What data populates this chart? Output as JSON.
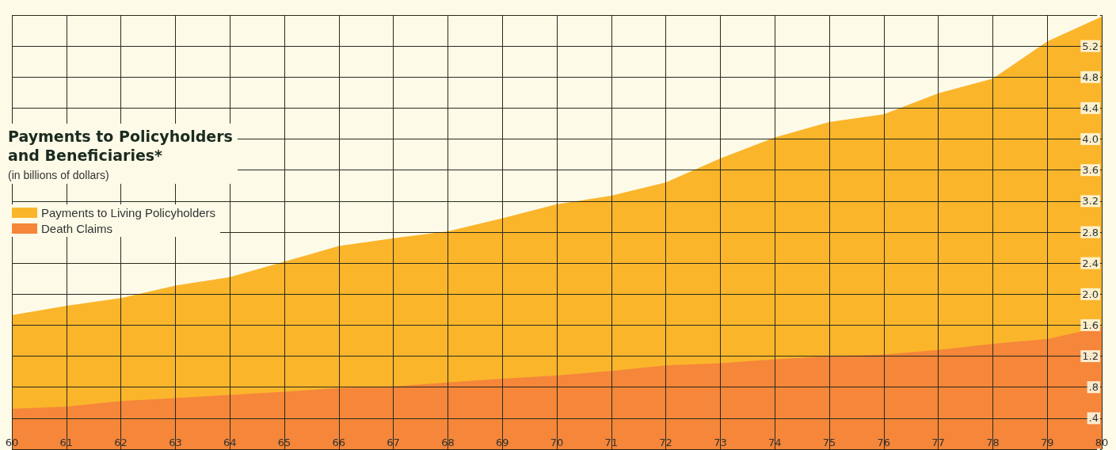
{
  "chart_data": {
    "type": "area",
    "title": "Payments to Policyholders\nand Beneficiaries*",
    "subtitle": "(in billions of dollars)",
    "stacked": true,
    "x": [
      60,
      61,
      62,
      63,
      64,
      65,
      66,
      67,
      68,
      69,
      70,
      71,
      72,
      73,
      74,
      75,
      76,
      77,
      78,
      79,
      80
    ],
    "series": [
      {
        "name": "Death Claims",
        "color": "#f5863a",
        "values": [
          0.52,
          0.55,
          0.62,
          0.66,
          0.7,
          0.74,
          0.79,
          0.81,
          0.86,
          0.91,
          0.95,
          1.01,
          1.08,
          1.11,
          1.16,
          1.2,
          1.22,
          1.28,
          1.36,
          1.42,
          1.58
        ]
      },
      {
        "name": "Payments to Living Policyholders",
        "color": "#fbb52b",
        "values": [
          1.21,
          1.3,
          1.33,
          1.45,
          1.52,
          1.68,
          1.83,
          1.91,
          1.95,
          2.07,
          2.21,
          2.26,
          2.36,
          2.64,
          2.86,
          3.02,
          3.1,
          3.31,
          3.42,
          3.84,
          4.0
        ]
      }
    ],
    "xlim": [
      60,
      80
    ],
    "xticks": [
      60,
      61,
      62,
      63,
      64,
      65,
      66,
      67,
      68,
      69,
      70,
      71,
      72,
      73,
      74,
      75,
      76,
      77,
      78,
      79,
      80
    ],
    "ylim": [
      0,
      5.6
    ],
    "yticks": [
      {
        "value": 0.4,
        "label": ".4"
      },
      {
        "value": 0.8,
        "label": ".8"
      },
      {
        "value": 1.2,
        "label": "1.2"
      },
      {
        "value": 1.6,
        "label": "1.6"
      },
      {
        "value": 2.0,
        "label": "2.0"
      },
      {
        "value": 2.4,
        "label": "2.4"
      },
      {
        "value": 2.8,
        "label": "2.8"
      },
      {
        "value": 3.2,
        "label": "3.2"
      },
      {
        "value": 3.6,
        "label": "3.6"
      },
      {
        "value": 4.0,
        "label": "4.0"
      },
      {
        "value": 4.4,
        "label": "4.4"
      },
      {
        "value": 4.8,
        "label": "4.8"
      },
      {
        "value": 5.2,
        "label": "5.2"
      }
    ],
    "grid": true,
    "legend": "left",
    "marker": "none"
  }
}
